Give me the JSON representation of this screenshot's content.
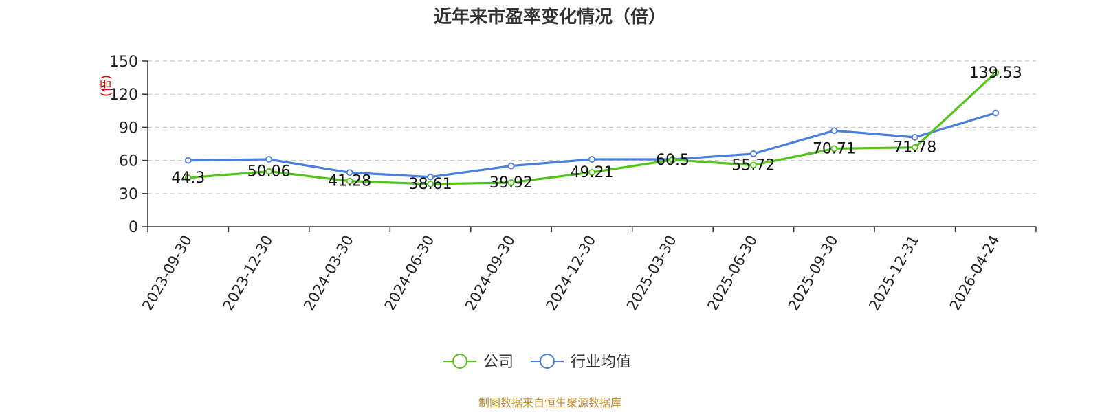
{
  "chart_data": {
    "type": "line",
    "title": "近年来市盈率变化情况（倍）",
    "ylabel": "(倍)",
    "xlabel": "",
    "ylim": [
      0,
      150
    ],
    "yticks": [
      0,
      30,
      60,
      90,
      120,
      150
    ],
    "grid": true,
    "legend_position": "bottom",
    "categories": [
      "2023-09-30",
      "2023-12-30",
      "2024-03-30",
      "2024-06-30",
      "2024-09-30",
      "2024-12-30",
      "2025-03-30",
      "2025-06-30",
      "2025-09-30",
      "2025-12-31",
      "2026-04-24"
    ],
    "series": [
      {
        "name": "公司",
        "color": "#52c41a",
        "values": [
          44.3,
          50.06,
          41.28,
          38.61,
          39.92,
          49.21,
          60.5,
          55.72,
          70.71,
          71.78,
          139.53
        ],
        "labels": [
          "44.3",
          "50.06",
          "41.28",
          "38.61",
          "39.92",
          "49.21",
          "60.5",
          "55.72",
          "70.71",
          "71.78",
          "139.53"
        ]
      },
      {
        "name": "行业均值",
        "color": "#4a7fe0",
        "values": [
          60,
          61,
          49,
          45,
          55,
          61,
          61,
          66,
          87,
          81,
          103
        ]
      }
    ],
    "source": "制图数据来自恒生聚源数据库"
  }
}
